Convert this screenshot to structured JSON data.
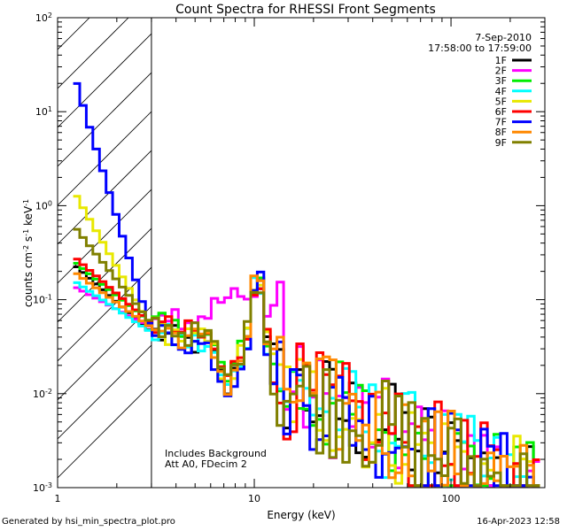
{
  "chart_data": {
    "type": "line",
    "title": "Count Spectra for RHESSI Front Segments",
    "xlabel": "Energy (keV)",
    "ylabel_parts": [
      "counts cm",
      "-2",
      " s",
      "-1",
      " keV",
      "-1"
    ],
    "xscale": "log",
    "yscale": "log",
    "xlim": [
      1,
      300
    ],
    "ylim": [
      0.001,
      100
    ],
    "x_ticks": [
      {
        "value": 1,
        "label": "1"
      },
      {
        "value": 10,
        "label": "10"
      },
      {
        "value": 100,
        "label": "100"
      }
    ],
    "y_ticks": [
      {
        "value": 0.001,
        "base": "10",
        "exp": "-3"
      },
      {
        "value": 0.01,
        "base": "10",
        "exp": "-2"
      },
      {
        "value": 0.1,
        "base": "10",
        "exp": "-1"
      },
      {
        "value": 1,
        "base": "10",
        "exp": "0"
      },
      {
        "value": 10,
        "base": "10",
        "exp": "1"
      },
      {
        "value": 100,
        "base": "10",
        "exp": "2"
      }
    ],
    "date": "7-Sep-2010",
    "time_range": "17:58:00 to 17:59:00",
    "shaded_region": {
      "x_min": 1,
      "x_max": 3
    },
    "annotation_lines": [
      "Includes Background",
      "Att A0, FDecim 2"
    ],
    "series": [
      {
        "name": "1F",
        "color": "#000000",
        "y_at_energy_1.2": 0.24
      },
      {
        "name": "2F",
        "color": "#ff00ff",
        "y_at_energy_1.2": 0.14
      },
      {
        "name": "3F",
        "color": "#00ee00",
        "y_at_energy_1.2": 0.26
      },
      {
        "name": "4F",
        "color": "#00ffff",
        "y_at_energy_1.2": 0.16
      },
      {
        "name": "5F",
        "color": "#e8e800",
        "y_at_energy_1.2": 1.45
      },
      {
        "name": "6F",
        "color": "#ff0000",
        "y_at_energy_1.2": 0.29
      },
      {
        "name": "7F",
        "color": "#0000ff",
        "y_at_energy_1.2": 26
      },
      {
        "name": "8F",
        "color": "#ff8800",
        "y_at_energy_1.2": 0.2
      },
      {
        "name": "9F",
        "color": "#808000",
        "y_at_energy_1.2": 0.62
      }
    ]
  },
  "footer": {
    "generated_by": "Generated by hsi_min_spectra_plot.pro",
    "timestamp": "16-Apr-2023 12:58"
  }
}
